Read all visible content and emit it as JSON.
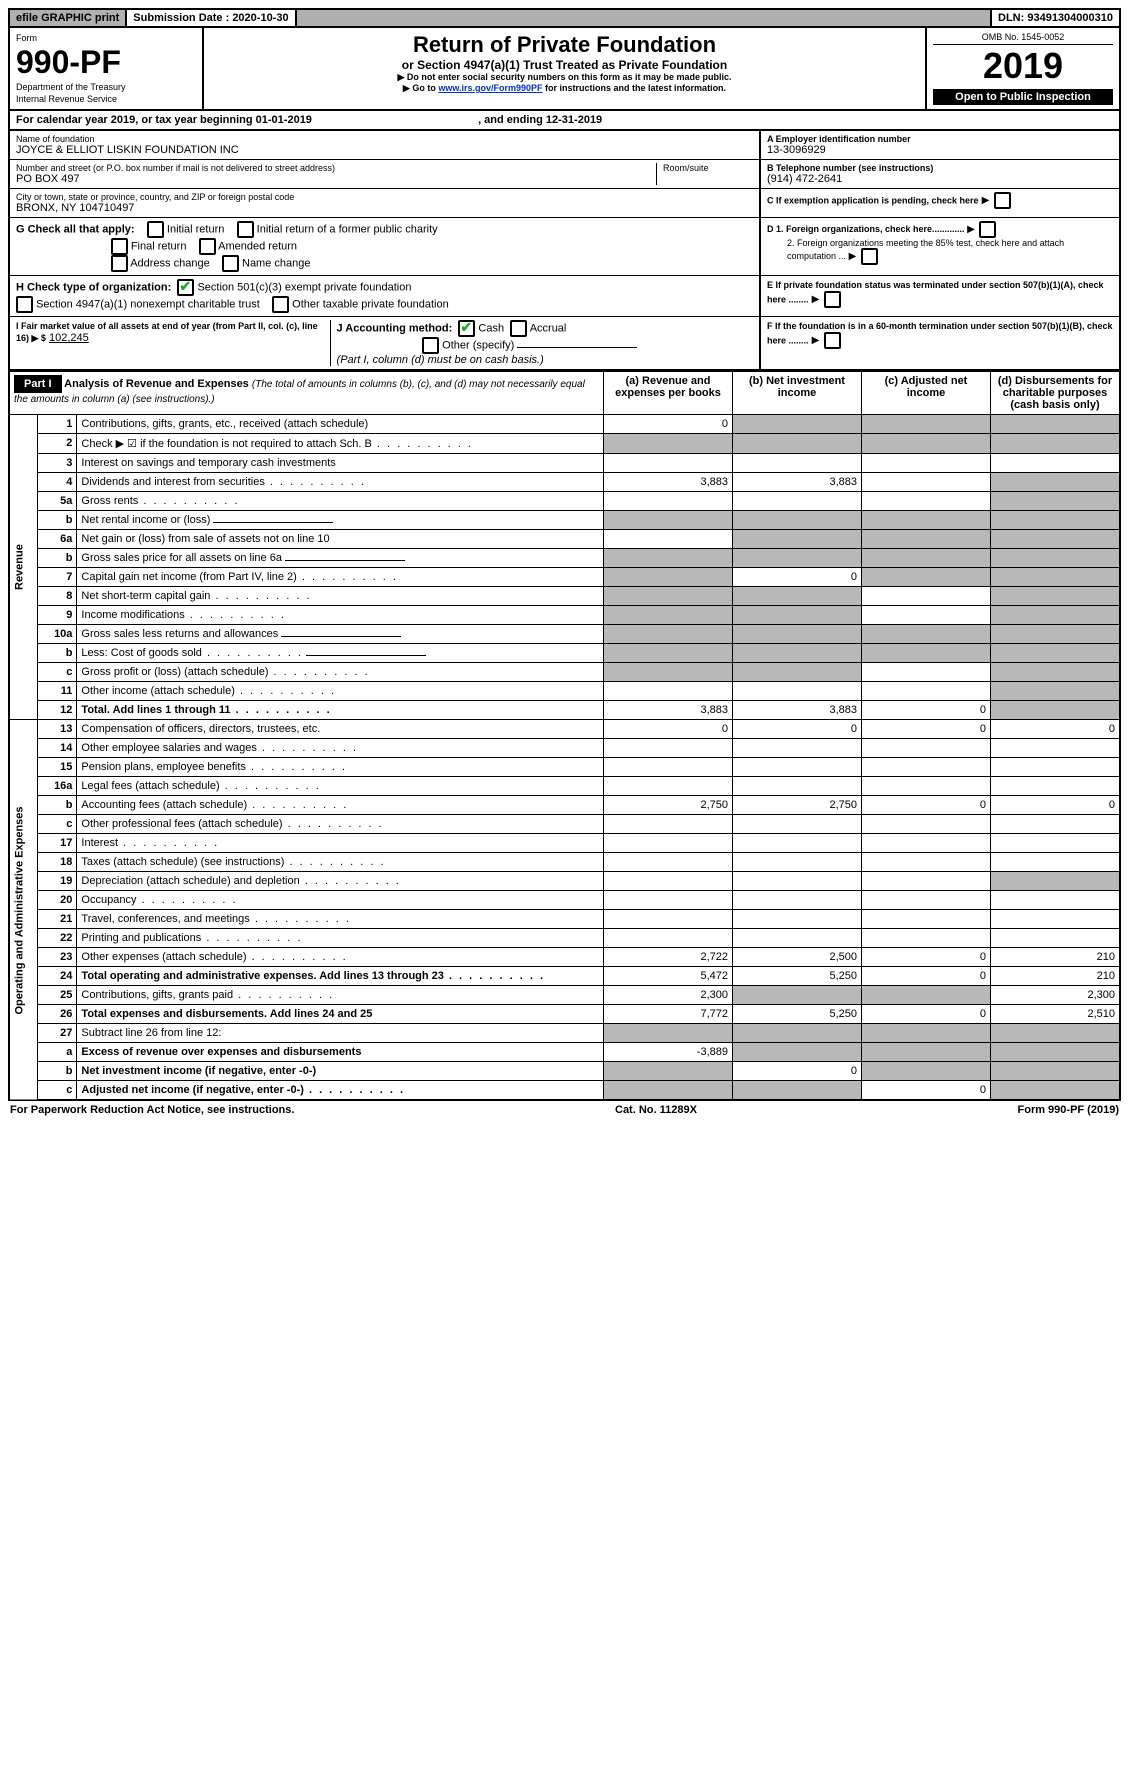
{
  "topbar": {
    "efile": "efile GRAPHIC print",
    "submission_label": "Submission Date : 2020-10-30",
    "dln": "DLN: 93491304000310"
  },
  "header": {
    "form_label": "Form",
    "form_number": "990-PF",
    "dept": "Department of the Treasury",
    "irs": "Internal Revenue Service",
    "title": "Return of Private Foundation",
    "subtitle": "or Section 4947(a)(1) Trust Treated as Private Foundation",
    "note1": "▶ Do not enter social security numbers on this form as it may be made public.",
    "note2_pre": "▶ Go to ",
    "note2_link": "www.irs.gov/Form990PF",
    "note2_post": " for instructions and the latest information.",
    "omb": "OMB No. 1545-0052",
    "year": "2019",
    "open": "Open to Public Inspection"
  },
  "calendar": {
    "text_pre": "For calendar year 2019, or tax year beginning ",
    "begin": "01-01-2019",
    "mid": " , and ending ",
    "end": "12-31-2019"
  },
  "entity": {
    "name_label": "Name of foundation",
    "name": "JOYCE & ELLIOT LISKIN FOUNDATION INC",
    "addr_label": "Number and street (or P.O. box number if mail is not delivered to street address)",
    "room_label": "Room/suite",
    "addr": "PO BOX 497",
    "city_label": "City or town, state or province, country, and ZIP or foreign postal code",
    "city": "BRONX, NY  104710497",
    "ein_label": "A Employer identification number",
    "ein": "13-3096929",
    "tel_label": "B Telephone number (see instructions)",
    "tel": "(914) 472-2641",
    "c_label": "C If exemption application is pending, check here",
    "d1": "D 1. Foreign organizations, check here.............",
    "d2": "2. Foreign organizations meeting the 85% test, check here and attach computation ...",
    "e": "E  If private foundation status was terminated under section 507(b)(1)(A), check here ........",
    "f": "F  If the foundation is in a 60-month termination under section 507(b)(1)(B), check here ........"
  },
  "g": {
    "label": "G Check all that apply:",
    "opts": [
      "Initial return",
      "Initial return of a former public charity",
      "Final return",
      "Amended return",
      "Address change",
      "Name change"
    ]
  },
  "h": {
    "label": "H Check type of organization:",
    "o1": "Section 501(c)(3) exempt private foundation",
    "o2": "Section 4947(a)(1) nonexempt charitable trust",
    "o3": "Other taxable private foundation"
  },
  "i": {
    "label": "I Fair market value of all assets at end of year (from Part II, col. (c), line 16) ▶ $",
    "value": "102,245"
  },
  "j": {
    "label": "J Accounting method:",
    "cash": "Cash",
    "accrual": "Accrual",
    "other": "Other (specify)",
    "note": "(Part I, column (d) must be on cash basis.)"
  },
  "part1": {
    "label": "Part I",
    "title": "Analysis of Revenue and Expenses",
    "title_note": "(The total of amounts in columns (b), (c), and (d) may not necessarily equal the amounts in column (a) (see instructions).)",
    "col_a": "(a)   Revenue and expenses per books",
    "col_b": "(b)  Net investment income",
    "col_c": "(c)  Adjusted net income",
    "col_d": "(d)  Disbursements for charitable purposes (cash basis only)"
  },
  "section_labels": {
    "revenue": "Revenue",
    "opadmin": "Operating and Administrative Expenses"
  },
  "rows": [
    {
      "n": "1",
      "l": "Contributions, gifts, grants, etc., received (attach schedule)",
      "a": "0",
      "b_shade": true,
      "c_shade": true,
      "d_shade": true
    },
    {
      "n": "2",
      "l": "Check ▶ ☑ if the foundation is not required to attach Sch. B",
      "dots": true,
      "all_shade": true
    },
    {
      "n": "3",
      "l": "Interest on savings and temporary cash investments"
    },
    {
      "n": "4",
      "l": "Dividends and interest from securities",
      "dots": true,
      "a": "3,883",
      "b": "3,883",
      "d_shade": true
    },
    {
      "n": "5a",
      "l": "Gross rents",
      "dots": true,
      "d_shade": true
    },
    {
      "n": "b",
      "l": "Net rental income or (loss)",
      "inline": true,
      "a_shade": true,
      "b_shade": true,
      "c_shade": true,
      "d_shade": true
    },
    {
      "n": "6a",
      "l": "Net gain or (loss) from sale of assets not on line 10",
      "b_shade": true,
      "c_shade": true,
      "d_shade": true
    },
    {
      "n": "b",
      "l": "Gross sales price for all assets on line 6a",
      "inline": true,
      "a_shade": true,
      "b_shade": true,
      "c_shade": true,
      "d_shade": true
    },
    {
      "n": "7",
      "l": "Capital gain net income (from Part IV, line 2)",
      "dots": true,
      "a_shade": true,
      "b": "0",
      "c_shade": true,
      "d_shade": true
    },
    {
      "n": "8",
      "l": "Net short-term capital gain",
      "dots": true,
      "a_shade": true,
      "b_shade": true,
      "d_shade": true
    },
    {
      "n": "9",
      "l": "Income modifications",
      "dots": true,
      "a_shade": true,
      "b_shade": true,
      "d_shade": true
    },
    {
      "n": "10a",
      "l": "Gross sales less returns and allowances",
      "inline": true,
      "a_shade": true,
      "b_shade": true,
      "c_shade": true,
      "d_shade": true
    },
    {
      "n": "b",
      "l": "Less: Cost of goods sold",
      "dots": true,
      "inline": true,
      "a_shade": true,
      "b_shade": true,
      "c_shade": true,
      "d_shade": true
    },
    {
      "n": "c",
      "l": "Gross profit or (loss) (attach schedule)",
      "dots": true,
      "a_shade": true,
      "b_shade": true,
      "d_shade": true
    },
    {
      "n": "11",
      "l": "Other income (attach schedule)",
      "dots": true,
      "d_shade": true
    },
    {
      "n": "12",
      "l": "Total. Add lines 1 through 11",
      "bold": true,
      "dots": true,
      "a": "3,883",
      "b": "3,883",
      "c": "0",
      "d_shade": true
    },
    {
      "n": "13",
      "l": "Compensation of officers, directors, trustees, etc.",
      "a": "0",
      "b": "0",
      "c": "0",
      "d": "0"
    },
    {
      "n": "14",
      "l": "Other employee salaries and wages",
      "dots": true
    },
    {
      "n": "15",
      "l": "Pension plans, employee benefits",
      "dots": true
    },
    {
      "n": "16a",
      "l": "Legal fees (attach schedule)",
      "dots": true
    },
    {
      "n": "b",
      "l": "Accounting fees (attach schedule)",
      "dots": true,
      "a": "2,750",
      "b": "2,750",
      "c": "0",
      "d": "0"
    },
    {
      "n": "c",
      "l": "Other professional fees (attach schedule)",
      "dots": true
    },
    {
      "n": "17",
      "l": "Interest",
      "dots": true
    },
    {
      "n": "18",
      "l": "Taxes (attach schedule) (see instructions)",
      "dots": true
    },
    {
      "n": "19",
      "l": "Depreciation (attach schedule) and depletion",
      "dots": true,
      "d_shade": true
    },
    {
      "n": "20",
      "l": "Occupancy",
      "dots": true
    },
    {
      "n": "21",
      "l": "Travel, conferences, and meetings",
      "dots": true
    },
    {
      "n": "22",
      "l": "Printing and publications",
      "dots": true
    },
    {
      "n": "23",
      "l": "Other expenses (attach schedule)",
      "dots": true,
      "a": "2,722",
      "b": "2,500",
      "c": "0",
      "d": "210"
    },
    {
      "n": "24",
      "l": "Total operating and administrative expenses. Add lines 13 through 23",
      "bold": true,
      "dots": true,
      "a": "5,472",
      "b": "5,250",
      "c": "0",
      "d": "210"
    },
    {
      "n": "25",
      "l": "Contributions, gifts, grants paid",
      "dots": true,
      "a": "2,300",
      "b_shade": true,
      "c_shade": true,
      "d": "2,300"
    },
    {
      "n": "26",
      "l": "Total expenses and disbursements. Add lines 24 and 25",
      "bold": true,
      "a": "7,772",
      "b": "5,250",
      "c": "0",
      "d": "2,510"
    },
    {
      "n": "27",
      "l": "Subtract line 26 from line 12:",
      "a_shade": true,
      "b_shade": true,
      "c_shade": true,
      "d_shade": true
    },
    {
      "n": "a",
      "l": "Excess of revenue over expenses and disbursements",
      "bold": true,
      "a": "-3,889",
      "b_shade": true,
      "c_shade": true,
      "d_shade": true
    },
    {
      "n": "b",
      "l": "Net investment income (if negative, enter -0-)",
      "bold": true,
      "a_shade": true,
      "b": "0",
      "c_shade": true,
      "d_shade": true
    },
    {
      "n": "c",
      "l": "Adjusted net income (if negative, enter -0-)",
      "bold": true,
      "dots": true,
      "a_shade": true,
      "b_shade": true,
      "c": "0",
      "d_shade": true
    }
  ],
  "footer": {
    "left": "For Paperwork Reduction Act Notice, see instructions.",
    "mid": "Cat. No. 11289X",
    "right": "Form 990-PF (2019)"
  }
}
